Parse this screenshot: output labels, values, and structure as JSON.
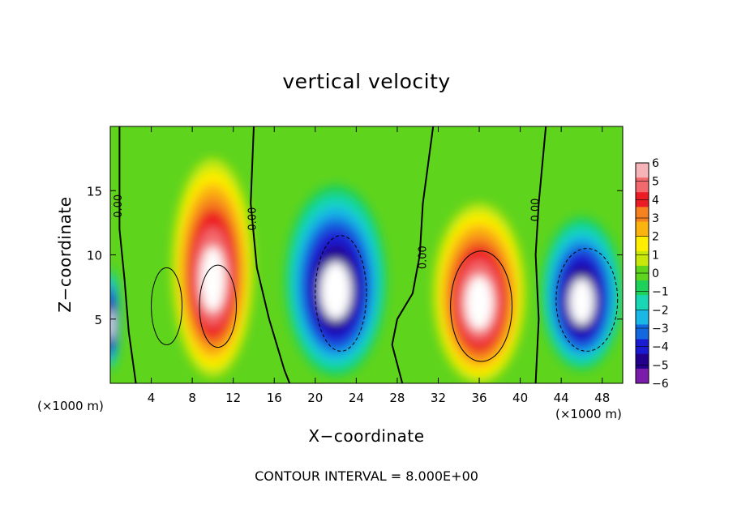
{
  "chart_data": {
    "type": "heatmap",
    "title": "vertical velocity",
    "xlabel": "X−coordinate",
    "ylabel": "Z−coordinate",
    "x_unit_left": "(×1000 m)",
    "x_unit_right": "(×1000 m)",
    "xlim": [
      0,
      50
    ],
    "ylim": [
      0,
      20
    ],
    "x_ticks": [
      4,
      8,
      12,
      16,
      20,
      24,
      28,
      32,
      36,
      40,
      44,
      48
    ],
    "y_ticks": [
      5,
      10,
      15
    ],
    "contour_labels": [
      "0.00",
      "0.00",
      "0.00",
      "0.00"
    ],
    "footer": "CONTOUR INTERVAL = 8.000E+00",
    "colorbar": {
      "ticks": [
        "6",
        "5",
        "4",
        "3",
        "2",
        "1",
        "0",
        "−1",
        "−2",
        "−3",
        "−4",
        "−5",
        "−6"
      ],
      "colors": [
        "#f7b4b8",
        "#f26a6e",
        "#ec1c24",
        "#f5821f",
        "#fbb40f",
        "#ffee00",
        "#c8e80a",
        "#5fd41d",
        "#1ed15a",
        "#19d7b5",
        "#19b7e6",
        "#1569e0",
        "#1a1ad2",
        "#23008c",
        "#7a1daa"
      ]
    },
    "features": [
      {
        "kind": "updraft",
        "x_center": 10,
        "z_center": 9,
        "x_width": 8,
        "z_height": 17,
        "peak": 6
      },
      {
        "kind": "downdraft",
        "x_center": 22,
        "z_center": 8,
        "x_width": 10,
        "z_height": 15,
        "peak": -6
      },
      {
        "kind": "updraft",
        "x_center": 36,
        "z_center": 7,
        "x_width": 9,
        "z_height": 14,
        "peak": 6
      },
      {
        "kind": "downdraft",
        "x_center": 46,
        "z_center": 7,
        "x_width": 8,
        "z_height": 12,
        "peak": -6
      },
      {
        "kind": "downdraft",
        "x_center": 0,
        "z_center": 5,
        "x_width": 2,
        "z_height": 8,
        "peak": -6
      }
    ]
  }
}
